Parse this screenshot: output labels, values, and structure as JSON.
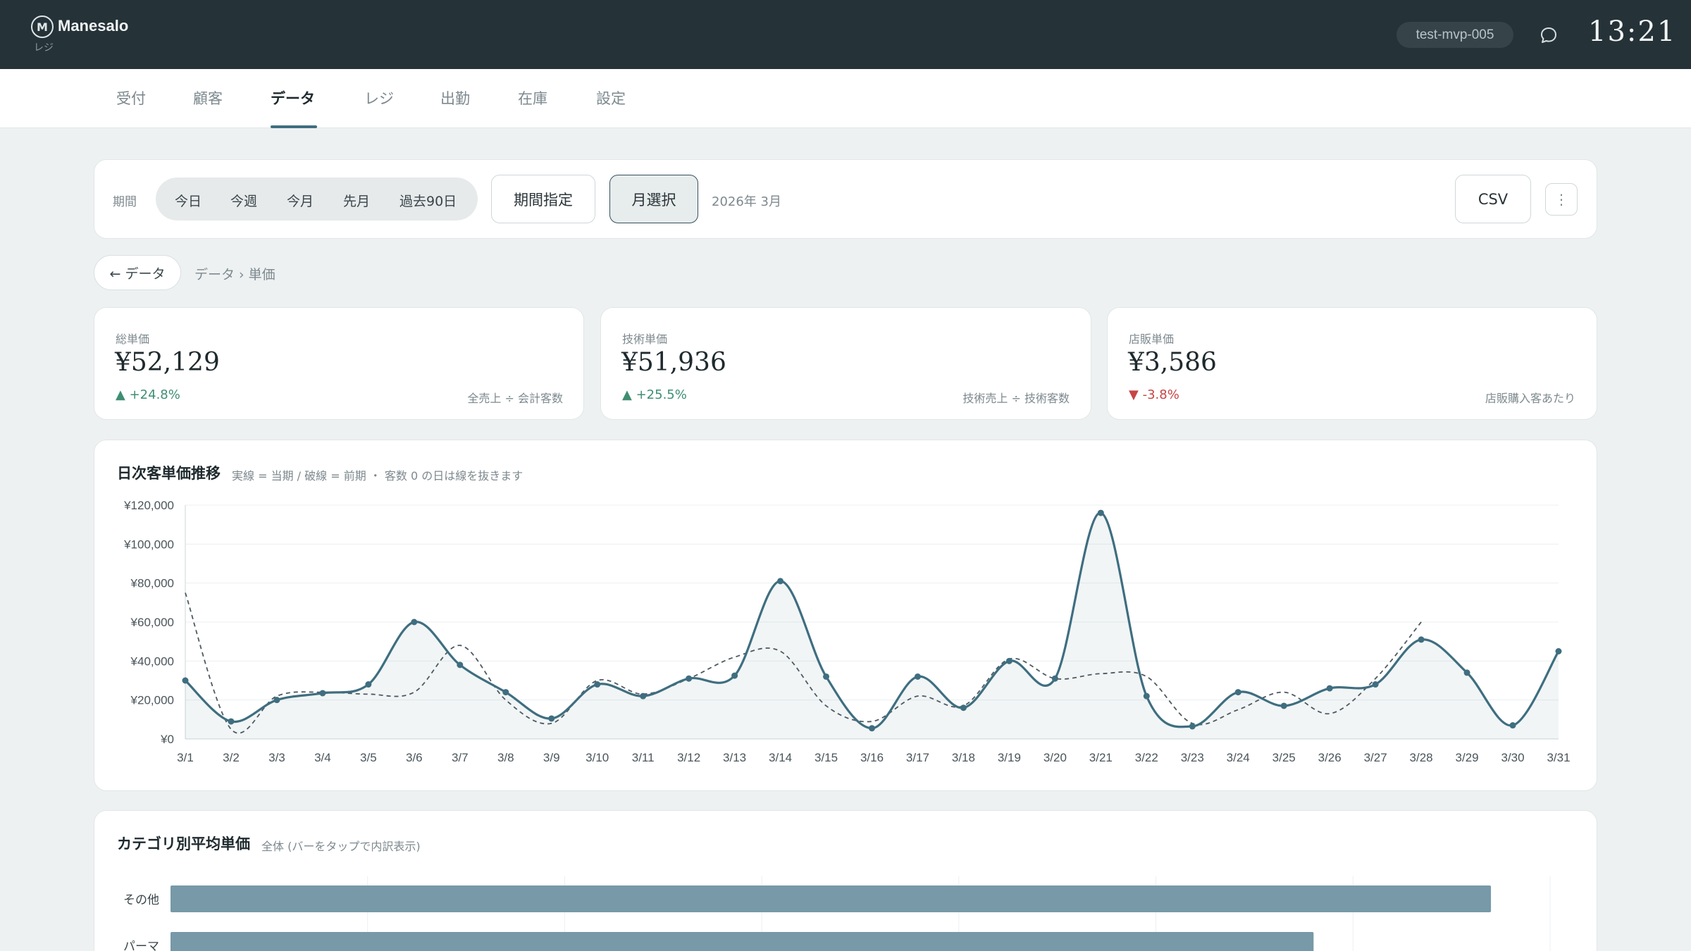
{
  "header": {
    "brand": "Manesalo",
    "brand_sub": "レジ",
    "logo_letter": "M",
    "user": "test-mvp-005",
    "time": "13:21"
  },
  "nav": {
    "tabs": [
      "受付",
      "顧客",
      "データ",
      "レジ",
      "出勤",
      "在庫",
      "設定"
    ],
    "active": "データ"
  },
  "filter": {
    "label": "期間",
    "quick": [
      "今日",
      "今週",
      "今月",
      "先月",
      "過去90日"
    ],
    "custom_label": "期間指定",
    "month_label": "月選択",
    "current_period": "2026年 3月",
    "csv_label": "CSV",
    "more_label": "⋮"
  },
  "breadcrumb": {
    "back_label": "← データ",
    "path": "データ › 単価"
  },
  "kpis": [
    {
      "label": "総単価",
      "value": "¥52,129",
      "delta": "+24.8%",
      "direction": "up",
      "note": "全売上 ÷ 会計客数"
    },
    {
      "label": "技術単価",
      "value": "¥51,936",
      "delta": "+25.5%",
      "direction": "up",
      "note": "技術売上 ÷ 技術客数"
    },
    {
      "label": "店販単価",
      "value": "¥3,586",
      "delta": "-3.8%",
      "direction": "down",
      "note": "店販購入客あたり"
    }
  ],
  "colors": {
    "accent": "#3f6e80",
    "up": "#3f8e72",
    "down": "#c74545",
    "bar": "#7799a8"
  },
  "daily_chart": {
    "title": "日次客単価推移",
    "subtitle": "実線 = 当期 / 破線 = 前期 ・ 客数 0 の日は線を抜きます"
  },
  "category_chart": {
    "title": "カテゴリ別平均単価",
    "subtitle": "全体 (バーをタップで内訳表示)"
  },
  "chart_data": [
    {
      "type": "line",
      "title": "日次客単価推移",
      "x": [
        "3/1",
        "3/2",
        "3/3",
        "3/4",
        "3/5",
        "3/6",
        "3/7",
        "3/8",
        "3/9",
        "3/10",
        "3/11",
        "3/12",
        "3/13",
        "3/14",
        "3/15",
        "3/16",
        "3/17",
        "3/18",
        "3/19",
        "3/20",
        "3/21",
        "3/22",
        "3/23",
        "3/24",
        "3/25",
        "3/26",
        "3/27",
        "3/28",
        "3/29",
        "3/30",
        "3/31"
      ],
      "yticks": [
        "¥0",
        "¥20,000",
        "¥40,000",
        "¥60,000",
        "¥80,000",
        "¥100,000",
        "¥120,000"
      ],
      "ylim": [
        0,
        120000
      ],
      "grid": true,
      "series": [
        {
          "style": "solid",
          "values": [
            30000,
            9000,
            20000,
            23500,
            28000,
            60000,
            38000,
            24000,
            10500,
            28000,
            22000,
            31000,
            32500,
            81000,
            32000,
            5500,
            32000,
            16000,
            40000,
            31000,
            116000,
            22000,
            6500,
            24000,
            17000,
            26000,
            28000,
            51000,
            34000,
            7000,
            45000
          ]
        },
        {
          "style": "dashed",
          "values": [
            75000,
            5000,
            22000,
            24000,
            23000,
            24000,
            48000,
            20000,
            8000,
            30000,
            23000,
            31000,
            42000,
            45000,
            17000,
            9000,
            22000,
            17000,
            41000,
            31000,
            33500,
            32000,
            8000,
            15000,
            24000,
            13000,
            31000,
            60000,
            null,
            null,
            null
          ]
        }
      ]
    },
    {
      "type": "bar",
      "title": "カテゴリ別平均単価",
      "orientation": "horizontal",
      "categories": [
        "その他",
        "パーマ"
      ],
      "values": [
        67000,
        58000
      ],
      "xlim": [
        0,
        70000
      ]
    }
  ]
}
